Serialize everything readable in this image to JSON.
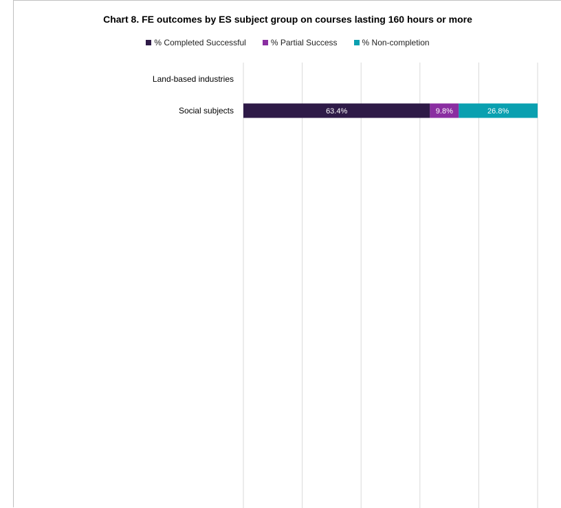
{
  "chart_data": {
    "type": "bar",
    "orientation": "horizontal",
    "stacked": true,
    "title": "Chart 8. FE outcomes by ES subject group on courses lasting 160 hours or more",
    "categories": [
      "Land-based industries",
      "Social subjects"
    ],
    "series": [
      {
        "name": "% Completed Successful",
        "color": "#2e1a47",
        "values": [
          null,
          63.4
        ],
        "labels": [
          "",
          "63.4%"
        ]
      },
      {
        "name": "% Partial Success",
        "color": "#8a2ea1",
        "values": [
          null,
          9.8
        ],
        "labels": [
          "",
          "9.8%"
        ]
      },
      {
        "name": "% Non-completion",
        "color": "#0aa0b0",
        "values": [
          null,
          26.8
        ],
        "labels": [
          "",
          "26.8%"
        ]
      }
    ],
    "xlim": [
      0,
      100
    ],
    "x_ticks": [
      0,
      20,
      40,
      60,
      80,
      100
    ],
    "grid": "vertical",
    "legend_position": "top"
  }
}
